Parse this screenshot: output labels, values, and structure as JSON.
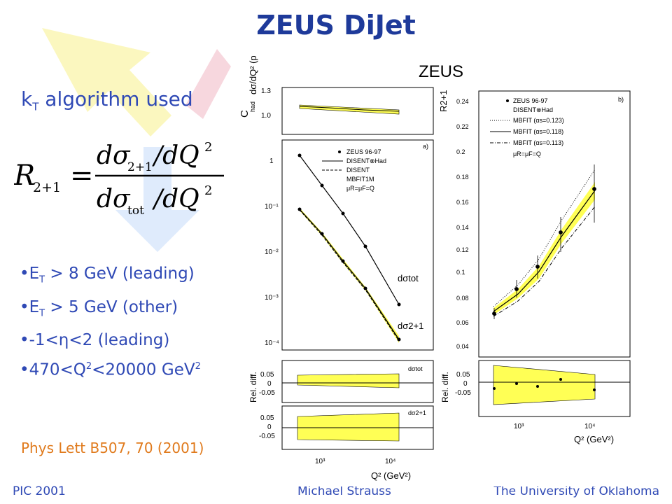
{
  "title": "ZEUS DiJet",
  "subtitle_prefix": "k",
  "subtitle_sub": "T",
  "subtitle_rest": "algorithm used",
  "formula": {
    "lhs": "R",
    "lhs_sub": "2+1",
    "eq": "=",
    "num_a": "dσ",
    "num_a_sub": "2+1",
    "num_b": "/dQ",
    "num_b_sup": "2",
    "den_a": "dσ",
    "den_a_sub": "tot",
    "den_b": "/dQ",
    "den_b_sup": "2"
  },
  "bullets": [
    {
      "pre": "•E",
      "sub": "T",
      "post": " > 8 GeV (leading)"
    },
    {
      "pre": "•E",
      "sub": "T",
      "post": " > 5 GeV (other)"
    },
    {
      "pre": "•-1<η<2 (leading)"
    },
    {
      "pre": "•470<Q",
      "sup": "2",
      "post": "<20000 GeV",
      "sup2": "2"
    }
  ],
  "reference": "Phys Lett B507, 70 (2001)",
  "footer": {
    "left": "PIC 2001",
    "center": "Michael Strauss",
    "right": "The University of Oklahoma"
  },
  "colors": {
    "title": "#1e3a9a",
    "text": "#2f49b5",
    "reference": "#e07a1c",
    "band": "#ffff55"
  },
  "figure": {
    "header": "ZEUS",
    "left_panel": {
      "chad_label": "C",
      "chad_sub": "had",
      "chad_ticks": [
        "1.3",
        "1.0"
      ],
      "y_label": "dσ/dQ² (pb/GeV²)",
      "y_ticks": [
        "1",
        "10⁻¹",
        "10⁻²",
        "10⁻³",
        "10⁻⁴"
      ],
      "panel_tag": "a)",
      "legend": [
        "ZEUS 96-97",
        "DISENT⊗Had",
        "DISENT",
        "MBFIT1M",
        "μR=μF=Q"
      ],
      "curve_tot": "dσtot",
      "curve_21": "dσ2+1",
      "rel_label": "Rel. diff.",
      "rel_ticks": [
        "0.05",
        "0",
        "-0.05"
      ],
      "rel_tag_1": "dσtot",
      "rel_tag_2": "dσ2+1",
      "x_ticks": [
        "10³",
        "10⁴"
      ],
      "x_label": "Q² (GeV²)"
    },
    "right_panel": {
      "y_label": "R2+1",
      "y_ticks": [
        "0.24",
        "0.22",
        "0.2",
        "0.18",
        "0.16",
        "0.14",
        "0.12",
        "0.1",
        "0.08",
        "0.06",
        "0.04"
      ],
      "panel_tag": "b)",
      "legend": [
        "ZEUS 96-97",
        "DISENT⊗Had",
        "MBFIT (αs=0.123)",
        "MBFIT (αs=0.118)",
        "MBFIT (αs=0.113)",
        "μR=μF=Q"
      ],
      "rel_label": "Rel. diff.",
      "rel_ticks": [
        "0.05",
        "0",
        "-0.05"
      ],
      "x_ticks": [
        "10³",
        "10⁴"
      ],
      "x_label": "Q² (GeV²)"
    }
  }
}
